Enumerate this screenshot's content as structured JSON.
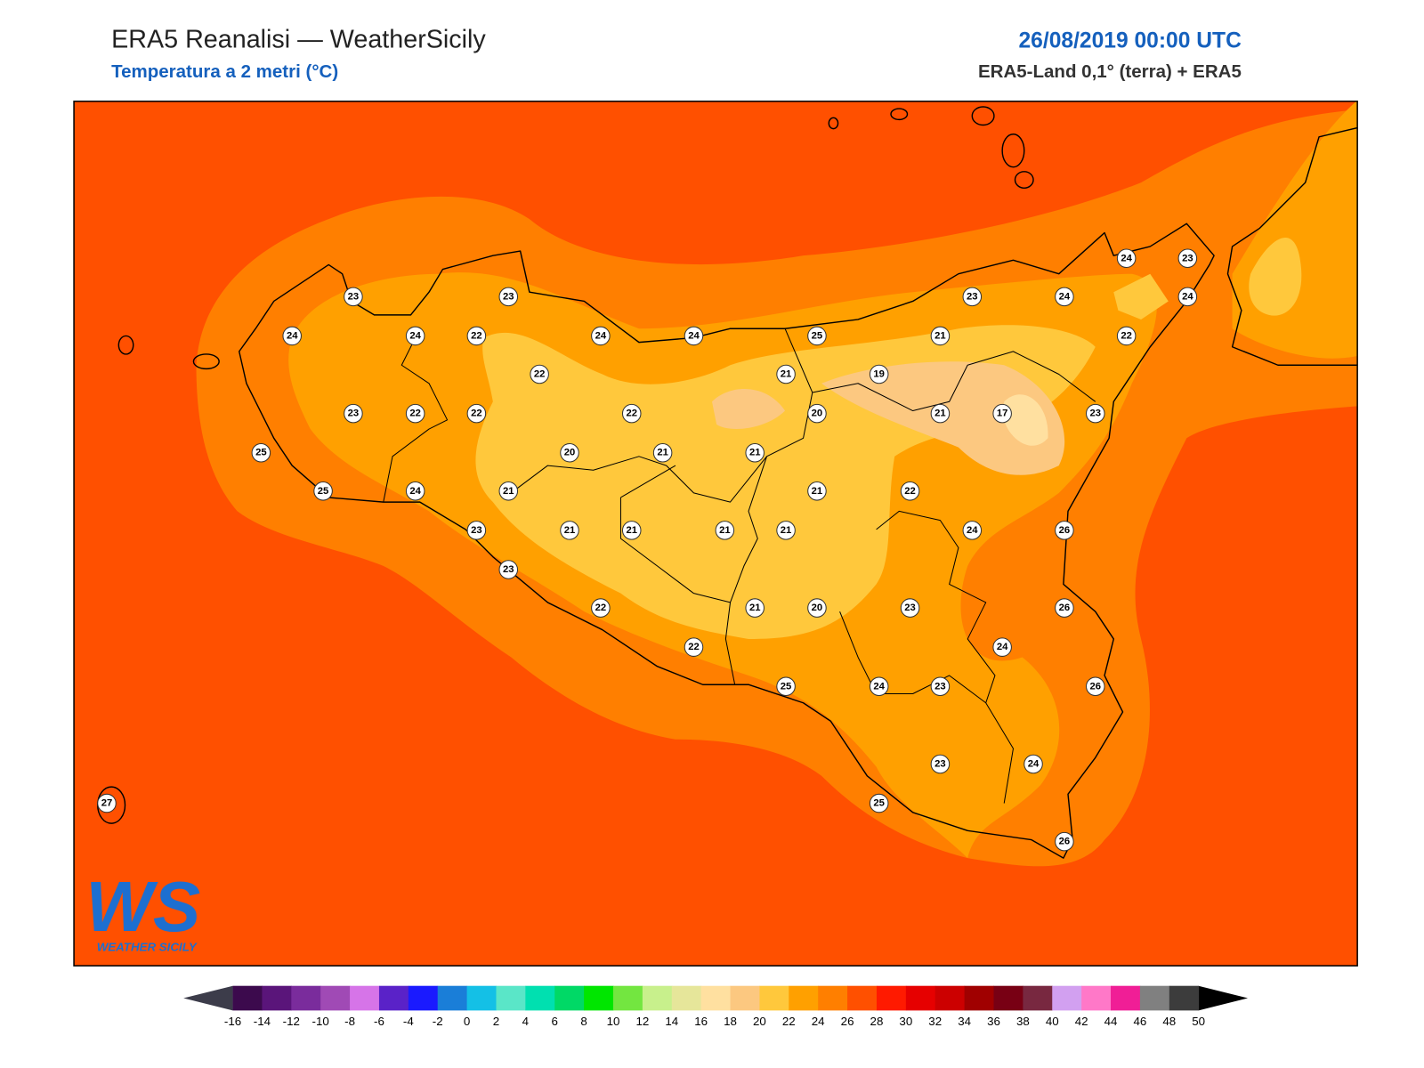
{
  "header": {
    "title": "ERA5 Reanalisi — WeatherSicily",
    "subtitle": "Temperatura a 2 metri (°C)",
    "datetime": "26/08/2019 00:00 UTC",
    "source": "ERA5-Land 0,1° (terra) + ERA5"
  },
  "map": {
    "stations": [
      23,
      23,
      24,
      24,
      22,
      24,
      24,
      25,
      23,
      24,
      24,
      23,
      24,
      21,
      22,
      22,
      21,
      19,
      23,
      22,
      22,
      22,
      20,
      21,
      17,
      23,
      25,
      20,
      21,
      21,
      25,
      24,
      21,
      21,
      22,
      23,
      21,
      21,
      21,
      21,
      24,
      26,
      23,
      22,
      21,
      20,
      23,
      26,
      24,
      22,
      25,
      24,
      23,
      26,
      23,
      24,
      25,
      26,
      27
    ]
  },
  "colorbar": {
    "ticks": [
      -16,
      -14,
      -12,
      -10,
      -8,
      -6,
      -4,
      -2,
      0,
      2,
      4,
      6,
      8,
      10,
      12,
      14,
      16,
      18,
      20,
      22,
      24,
      26,
      28,
      30,
      32,
      34,
      36,
      38,
      40,
      42,
      44,
      46,
      48,
      50
    ],
    "colors": [
      "#3c0a4d",
      "#5a157a",
      "#7a2c9c",
      "#a04ab5",
      "#d674e8",
      "#5a22c8",
      "#1a1aff",
      "#1a7ed8",
      "#14c0e6",
      "#5ae6c8",
      "#00e0b0",
      "#00d966",
      "#00e600",
      "#73e640",
      "#c8f08c",
      "#e6e69a",
      "#ffe0a0",
      "#fcc880",
      "#ffc83c",
      "#ffa000",
      "#ff7f00",
      "#ff5000",
      "#ff1a00",
      "#e60000",
      "#cc0000",
      "#a00000",
      "#780014",
      "#782840",
      "#d2a0f0",
      "#ff78c8",
      "#f01e96",
      "#808080",
      "#3c3c3c"
    ],
    "under_color": "#3c3c4a",
    "over_color": "#000000"
  },
  "logo": {
    "mark": "WS",
    "name": "WEATHER SICILY"
  }
}
